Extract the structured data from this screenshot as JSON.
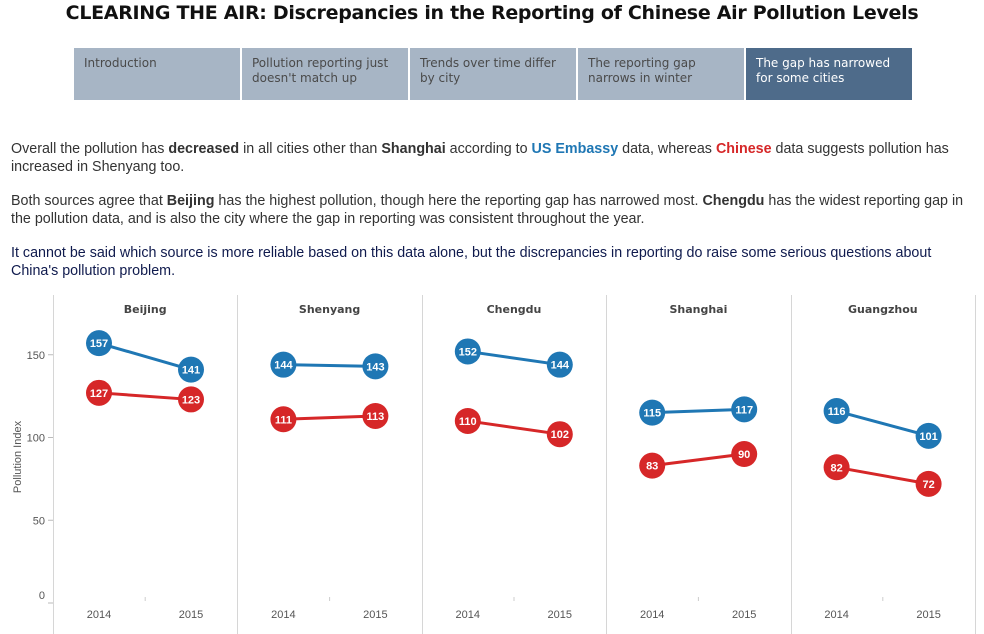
{
  "title": "CLEARING THE AIR: Discrepancies in the Reporting of Chinese Air Pollution Levels",
  "tabs": [
    {
      "label": "Introduction",
      "active": false
    },
    {
      "label": "Pollution reporting just doesn't match up",
      "active": false
    },
    {
      "label": "Trends over time differ by city",
      "active": false
    },
    {
      "label": "The reporting gap narrows in winter",
      "active": false
    },
    {
      "label": "The gap has narrowed for some cities",
      "active": true
    }
  ],
  "story": {
    "p1": {
      "t1": "Overall the pollution has ",
      "b1": "decreased",
      "t2": " in all cities other than ",
      "b2": "Shanghai",
      "t3": " according to ",
      "us": "US Embassy",
      "t4": " data, whereas ",
      "cn": "Chinese",
      "t5": " data suggests pollution has increased in Shenyang too."
    },
    "p2": {
      "t1": "Both sources agree that ",
      "b1": "Beijing",
      "t2": " has the highest pollution, though here the reporting gap has narrowed most. ",
      "b2": "Chengdu",
      "t3": " has the widest reporting gap in the pollution data, and is also the city where the gap in reporting was consistent throughout the year."
    },
    "p3": "It cannot be said which source is more reliable based on this data alone, but the discrepancies in reporting do raise some serious questions about China's pollution problem."
  },
  "colors": {
    "us_embassy": "#1f77b4",
    "chinese": "#d62728",
    "tab_inactive": "#a7b5c5",
    "tab_active": "#4e6b8a"
  },
  "chart_data": {
    "type": "line",
    "title": "",
    "ylabel": "Pollution Index",
    "ylim": [
      0,
      180
    ],
    "yticks": [
      0,
      50,
      100,
      150
    ],
    "x": [
      "2014",
      "2015"
    ],
    "panels": [
      {
        "city": "Beijing",
        "series": [
          {
            "name": "US Embassy",
            "values": [
              157,
              141
            ]
          },
          {
            "name": "Chinese",
            "values": [
              127,
              123
            ]
          }
        ]
      },
      {
        "city": "Shenyang",
        "series": [
          {
            "name": "US Embassy",
            "values": [
              144,
              143
            ]
          },
          {
            "name": "Chinese",
            "values": [
              111,
              113
            ]
          }
        ]
      },
      {
        "city": "Chengdu",
        "series": [
          {
            "name": "US Embassy",
            "values": [
              152,
              144
            ]
          },
          {
            "name": "Chinese",
            "values": [
              110,
              102
            ]
          }
        ]
      },
      {
        "city": "Shanghai",
        "series": [
          {
            "name": "US Embassy",
            "values": [
              115,
              117
            ]
          },
          {
            "name": "Chinese",
            "values": [
              83,
              90
            ]
          }
        ]
      },
      {
        "city": "Guangzhou",
        "series": [
          {
            "name": "US Embassy",
            "values": [
              116,
              101
            ]
          },
          {
            "name": "Chinese",
            "values": [
              82,
              72
            ]
          }
        ]
      }
    ]
  }
}
